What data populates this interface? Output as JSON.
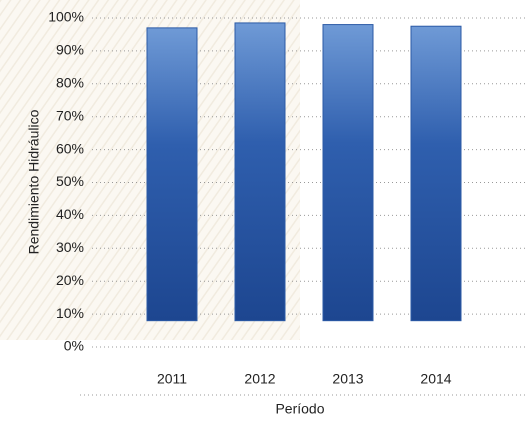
{
  "chart_data": {
    "type": "bar",
    "y_label": "Rendimiento Hidráulico",
    "x_label": "Período",
    "categories": [
      "2011",
      "2012",
      "2013",
      "2014"
    ],
    "values": [
      97,
      98.5,
      98,
      97.5
    ],
    "base": [
      8,
      8,
      8,
      8
    ],
    "color": "#2b5aa6",
    "ylim": [
      0,
      100
    ],
    "yticks": [
      {
        "value": 0,
        "label": "0%"
      },
      {
        "value": 10,
        "label": "10%"
      },
      {
        "value": 20,
        "label": "20%"
      },
      {
        "value": 30,
        "label": "30%"
      },
      {
        "value": 40,
        "label": "40%"
      },
      {
        "value": 50,
        "label": "50%"
      },
      {
        "value": 60,
        "label": "60%"
      },
      {
        "value": 70,
        "label": "70%"
      },
      {
        "value": 80,
        "label": "80%"
      },
      {
        "value": 90,
        "label": "90%"
      },
      {
        "value": 100,
        "label": "100%"
      }
    ],
    "grid": true
  }
}
